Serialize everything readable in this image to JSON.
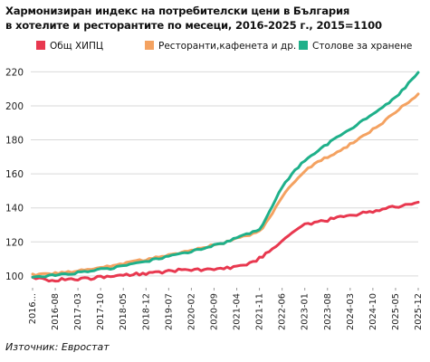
{
  "chart_data": {
    "type": "line",
    "title_line1": "Хармонизиран индекс на потребителски цени в България",
    "title_line2": "в хотелите и ресторантите по месеци, 2016-2025 г., 2015=1100",
    "x_start": "2016-01",
    "x_end": "2025-12",
    "x_tick_labels": [
      "2016...",
      "2016-08",
      "2017-03",
      "2017-10",
      "2018-05",
      "2018-12",
      "2019-07",
      "2020-02",
      "2020-09",
      "2021-04",
      "2021-11",
      "2022-06",
      "2023-01",
      "2023-08",
      "2024-03",
      "2024-10",
      "2025-05",
      "2025-12"
    ],
    "y_ticks": [
      100,
      120,
      140,
      160,
      180,
      200,
      220
    ],
    "ylim": [
      93,
      225
    ],
    "grid": true,
    "legend_position": "top",
    "series": [
      {
        "name": "Общ ХИПЦ",
        "color": "#e8384f",
        "keypoints": [
          [
            "2016-01",
            98.5
          ],
          [
            "2016-06",
            97.5
          ],
          [
            "2017-06",
            98.5
          ],
          [
            "2018-06",
            100.5
          ],
          [
            "2019-06",
            102.5
          ],
          [
            "2020-01",
            104
          ],
          [
            "2020-06",
            103.5
          ],
          [
            "2021-01",
            104.5
          ],
          [
            "2021-06",
            106.5
          ],
          [
            "2021-10",
            109
          ],
          [
            "2022-01",
            113
          ],
          [
            "2022-06",
            121
          ],
          [
            "2022-09",
            126
          ],
          [
            "2023-01",
            130
          ],
          [
            "2023-06",
            132
          ],
          [
            "2024-01",
            135
          ],
          [
            "2024-06",
            136.5
          ],
          [
            "2025-01",
            139
          ],
          [
            "2025-06",
            141
          ],
          [
            "2025-09",
            142
          ],
          [
            "2025-12",
            143
          ]
        ]
      },
      {
        "name": "Ресторанти,кафенета и др.",
        "color": "#f4a261",
        "keypoints": [
          [
            "2016-01",
            100.5
          ],
          [
            "2016-06",
            101
          ],
          [
            "2017-01",
            102.5
          ],
          [
            "2018-01",
            106
          ],
          [
            "2019-01",
            110
          ],
          [
            "2020-01",
            114.5
          ],
          [
            "2021-01",
            120
          ],
          [
            "2021-06",
            123
          ],
          [
            "2021-09",
            124.5
          ],
          [
            "2021-12",
            128
          ],
          [
            "2022-03",
            137
          ],
          [
            "2022-06",
            146
          ],
          [
            "2022-09",
            154
          ],
          [
            "2023-01",
            162
          ],
          [
            "2023-06",
            168
          ],
          [
            "2024-01",
            175
          ],
          [
            "2024-06",
            181
          ],
          [
            "2025-01",
            190
          ],
          [
            "2025-06",
            198
          ],
          [
            "2025-09",
            202
          ],
          [
            "2025-12",
            207
          ]
        ]
      },
      {
        "name": "Столове за хранене",
        "color": "#1fb08a",
        "keypoints": [
          [
            "2016-01",
            99.5
          ],
          [
            "2016-06",
            100
          ],
          [
            "2017-01",
            101.5
          ],
          [
            "2018-01",
            104.5
          ],
          [
            "2019-01",
            109
          ],
          [
            "2020-01",
            114
          ],
          [
            "2021-01",
            120
          ],
          [
            "2021-06",
            124
          ],
          [
            "2021-11",
            127
          ],
          [
            "2022-02",
            138
          ],
          [
            "2022-06",
            152
          ],
          [
            "2022-09",
            160
          ],
          [
            "2023-01",
            168
          ],
          [
            "2023-06",
            175
          ],
          [
            "2024-01",
            184
          ],
          [
            "2024-06",
            190
          ],
          [
            "2025-01",
            199
          ],
          [
            "2025-06",
            207
          ],
          [
            "2025-09",
            213
          ],
          [
            "2025-12",
            220
          ]
        ]
      }
    ]
  },
  "source": "Източник: Евростат"
}
